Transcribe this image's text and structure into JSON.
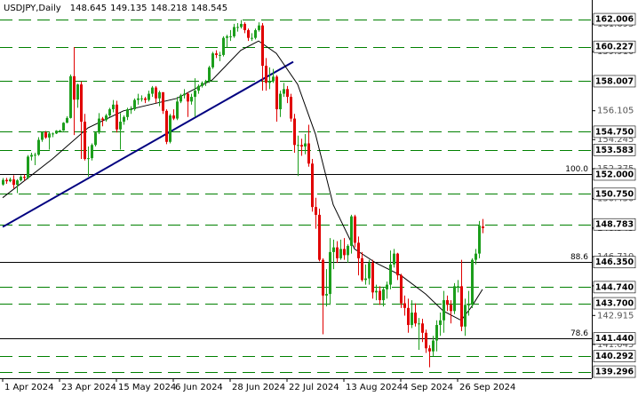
{
  "chart_data": {
    "type": "candlestick",
    "title": "USDJPY,Daily",
    "quote": [
      148.645,
      149.135,
      148.218,
      148.545
    ],
    "up_color": "#1c9e1c",
    "down_color": "#e00000",
    "level_color": "#008000",
    "trend_color": "#000080",
    "ma_color": "#000000",
    "xlim": [
      -0.75,
      165.75
    ],
    "ylim": [
      138.87,
      163.24
    ],
    "xticks": [
      {
        "value": 0,
        "label": "1 Apr 2024"
      },
      {
        "value": 16,
        "label": "23 Apr 2024"
      },
      {
        "value": 32,
        "label": "15 May 2024"
      },
      {
        "value": 48,
        "label": "6 Jun 2024"
      },
      {
        "value": 64,
        "label": "28 Jun 2024"
      },
      {
        "value": 80,
        "label": "22 Jul 2024"
      },
      {
        "value": 96,
        "label": "13 Aug 2024"
      },
      {
        "value": 112,
        "label": "4 Sep 2024"
      },
      {
        "value": 128,
        "label": "26 Sep 2024"
      }
    ],
    "yticks": [
      161.695,
      {
        "value": 159.91,
        "label": "159.910"
      },
      156.105,
      154.245,
      152.375,
      {
        "value": 150.45,
        "label": "150.450"
      },
      148.545,
      {
        "value": 146.71,
        "label": "146.710"
      },
      144.825,
      142.915,
      141.045
    ],
    "levels": [
      {
        "value": 162.006,
        "style": "dashed"
      },
      {
        "value": 160.227,
        "style": "dashed"
      },
      {
        "value": 158.007,
        "style": "dashed"
      },
      {
        "value": 154.75,
        "label": "154.750",
        "style": "dashed"
      },
      {
        "value": 153.583,
        "style": "dashed"
      },
      {
        "value": 152,
        "label": "152.000",
        "style": "solid",
        "fib": "100.0"
      },
      {
        "value": 150.75,
        "label": "150.750",
        "style": "dashed"
      },
      {
        "value": 148.783,
        "style": "dashed"
      },
      {
        "value": 146.35,
        "label": "146.350",
        "style": "solid",
        "fib": 88.6
      },
      {
        "value": 144.74,
        "label": "144.740",
        "style": "dashed"
      },
      {
        "value": 143.7,
        "label": "143.700",
        "style": "dashed"
      },
      {
        "value": 141.44,
        "label": "141.440",
        "style": "solid",
        "fib": 78.6
      },
      {
        "value": 140.292,
        "style": "dashed"
      },
      {
        "value": 139.296,
        "style": "dashed"
      }
    ],
    "trend": {
      "x": [
        0,
        81.75
      ],
      "values": [
        148.62,
        159.26
      ]
    },
    "ma": {
      "x": [
        0,
        14,
        24,
        34,
        49,
        59,
        67,
        72,
        77,
        83,
        88,
        93,
        99,
        105,
        112,
        119,
        124,
        129,
        132,
        135
      ],
      "values": [
        150.5,
        153.0,
        155.0,
        156.1,
        156.9,
        158.1,
        160.0,
        160.6,
        159.8,
        157.8,
        154.6,
        150.05,
        147.2,
        146.3,
        145.5,
        144.3,
        143.2,
        142.6,
        143.5,
        144.6
      ]
    },
    "ohlc": [
      [
        151.35,
        151.77,
        151.28,
        151.65
      ],
      [
        151.65,
        151.78,
        151.4,
        151.56
      ],
      [
        151.56,
        151.8,
        151.5,
        151.68
      ],
      [
        151.68,
        151.95,
        151.1,
        151.33
      ],
      [
        151.33,
        151.7,
        150.8,
        151.62
      ],
      [
        151.62,
        151.95,
        151.55,
        151.85
      ],
      [
        151.85,
        152.0,
        151.6,
        151.78
      ],
      [
        151.78,
        153.25,
        151.7,
        153.15
      ],
      [
        153.15,
        153.4,
        152.9,
        153.26
      ],
      [
        153.26,
        153.4,
        152.6,
        153.27
      ],
      [
        153.27,
        154.4,
        153.2,
        154.23
      ],
      [
        154.23,
        154.78,
        154.1,
        154.71
      ],
      [
        154.71,
        154.8,
        154.3,
        154.38
      ],
      [
        154.38,
        154.75,
        153.6,
        154.64
      ],
      [
        154.64,
        154.7,
        154.4,
        154.64
      ],
      [
        154.64,
        154.85,
        154.6,
        154.82
      ],
      [
        154.82,
        154.87,
        154.7,
        154.83
      ],
      [
        154.83,
        155.37,
        154.8,
        155.33
      ],
      [
        155.33,
        155.75,
        155.3,
        155.64
      ],
      [
        155.64,
        158.44,
        155.6,
        158.33
      ],
      [
        158.33,
        160.21,
        154.54,
        156.82
      ],
      [
        156.82,
        157.85,
        156.3,
        157.8
      ],
      [
        157.8,
        157.99,
        153.0,
        155.4
      ],
      [
        155.4,
        155.9,
        152.9,
        153.0
      ],
      [
        153.0,
        153.8,
        151.86,
        153.05
      ],
      [
        153.05,
        154.0,
        152.9,
        153.9
      ],
      [
        153.9,
        154.75,
        153.8,
        154.7
      ],
      [
        154.7,
        155.95,
        154.6,
        155.6
      ],
      [
        155.6,
        155.7,
        155.1,
        155.5
      ],
      [
        155.5,
        155.9,
        155.4,
        155.8
      ],
      [
        155.8,
        156.3,
        155.7,
        156.2
      ],
      [
        156.2,
        156.8,
        156.0,
        156.5
      ],
      [
        156.5,
        156.75,
        154.7,
        154.9
      ],
      [
        154.9,
        155.95,
        153.6,
        155.4
      ],
      [
        155.4,
        155.8,
        155.2,
        155.7
      ],
      [
        155.7,
        156.3,
        155.5,
        156.2
      ],
      [
        156.2,
        156.4,
        155.9,
        156.2
      ],
      [
        156.2,
        156.9,
        156.1,
        156.8
      ],
      [
        156.8,
        157.2,
        156.5,
        156.9
      ],
      [
        156.9,
        157.1,
        156.7,
        156.9
      ],
      [
        156.9,
        157.0,
        156.6,
        156.8
      ],
      [
        156.8,
        157.4,
        156.7,
        157.2
      ],
      [
        157.2,
        157.7,
        157.0,
        157.6
      ],
      [
        157.6,
        157.7,
        156.6,
        156.9
      ],
      [
        156.9,
        157.4,
        156.4,
        157.3
      ],
      [
        157.3,
        157.3,
        155.9,
        156.1
      ],
      [
        156.1,
        156.2,
        153.95,
        154.1
      ],
      [
        154.1,
        155.9,
        154.0,
        155.8
      ],
      [
        155.8,
        156.2,
        155.5,
        155.6
      ],
      [
        155.6,
        157.0,
        155.5,
        156.7
      ],
      [
        156.7,
        157.2,
        156.6,
        157.1
      ],
      [
        157.1,
        157.5,
        156.9,
        157.2
      ],
      [
        157.2,
        157.3,
        155.7,
        156.7
      ],
      [
        156.7,
        157.2,
        156.5,
        157.0
      ],
      [
        157.0,
        158.2,
        155.7,
        157.4
      ],
      [
        157.4,
        157.8,
        157.2,
        157.7
      ],
      [
        157.7,
        158.0,
        157.6,
        157.9
      ],
      [
        157.9,
        158.1,
        157.7,
        158.0
      ],
      [
        158.0,
        159.0,
        157.9,
        158.9
      ],
      [
        158.9,
        159.9,
        158.8,
        159.8
      ],
      [
        159.8,
        160.0,
        159.5,
        159.7
      ],
      [
        159.7,
        159.9,
        159.3,
        159.7
      ],
      [
        159.7,
        160.9,
        159.6,
        160.8
      ],
      [
        160.8,
        161.0,
        160.2,
        160.9
      ],
      [
        160.9,
        161.3,
        160.6,
        160.9
      ],
      [
        160.9,
        161.7,
        160.8,
        161.5
      ],
      [
        161.5,
        161.75,
        161.2,
        161.5
      ],
      [
        161.5,
        161.95,
        161.4,
        161.7
      ],
      [
        161.7,
        161.8,
        161.1,
        161.3
      ],
      [
        161.3,
        161.4,
        160.6,
        160.8
      ],
      [
        160.8,
        161.1,
        160.6,
        160.8
      ],
      [
        160.8,
        161.4,
        160.7,
        161.3
      ],
      [
        161.3,
        161.8,
        161.2,
        161.6
      ],
      [
        161.6,
        161.75,
        157.4,
        159.0
      ],
      [
        159.0,
        159.5,
        157.4,
        157.9
      ],
      [
        157.9,
        158.9,
        157.5,
        158.0
      ],
      [
        158.0,
        158.8,
        157.9,
        158.3
      ],
      [
        158.3,
        158.4,
        155.4,
        156.2
      ],
      [
        156.2,
        157.4,
        155.7,
        157.2
      ],
      [
        157.2,
        157.9,
        157.0,
        157.5
      ],
      [
        157.5,
        157.7,
        156.6,
        157.0
      ],
      [
        157.0,
        157.2,
        155.4,
        155.6
      ],
      [
        155.6,
        155.9,
        153.4,
        153.9
      ],
      [
        153.9,
        154.5,
        151.9,
        153.9
      ],
      [
        153.9,
        154.3,
        153.2,
        153.8
      ],
      [
        153.8,
        154.6,
        153.3,
        154.0
      ],
      [
        154.0,
        155.2,
        152.5,
        152.7
      ],
      [
        152.7,
        153.0,
        149.6,
        149.9
      ],
      [
        149.9,
        150.5,
        148.5,
        149.4
      ],
      [
        149.4,
        149.8,
        146.4,
        146.5
      ],
      [
        146.5,
        146.6,
        141.7,
        144.2
      ],
      [
        144.2,
        145.9,
        143.5,
        144.3
      ],
      [
        144.3,
        147.9,
        143.6,
        147.0
      ],
      [
        147.0,
        147.8,
        145.9,
        147.3
      ],
      [
        147.3,
        147.7,
        146.3,
        146.6
      ],
      [
        146.6,
        147.8,
        146.5,
        147.2
      ],
      [
        147.2,
        147.9,
        146.5,
        146.8
      ],
      [
        146.8,
        147.5,
        146.3,
        147.4
      ],
      [
        147.4,
        149.4,
        146.9,
        149.3
      ],
      [
        149.3,
        149.4,
        147.3,
        147.6
      ],
      [
        147.6,
        148.0,
        145.5,
        146.6
      ],
      [
        146.6,
        147.0,
        145.1,
        145.2
      ],
      [
        145.2,
        146.2,
        144.9,
        145.3
      ],
      [
        145.3,
        146.5,
        144.9,
        146.3
      ],
      [
        146.3,
        146.5,
        144.0,
        144.4
      ],
      [
        144.4,
        144.9,
        143.9,
        144.5
      ],
      [
        144.5,
        144.8,
        143.6,
        143.9
      ],
      [
        143.9,
        144.7,
        143.5,
        144.6
      ],
      [
        144.6,
        145.1,
        144.0,
        144.9
      ],
      [
        144.9,
        147.1,
        144.6,
        146.2
      ],
      [
        146.2,
        147.2,
        146.0,
        146.9
      ],
      [
        146.9,
        146.95,
        145.2,
        145.5
      ],
      [
        145.5,
        145.6,
        143.4,
        143.7
      ],
      [
        143.7,
        144.2,
        142.9,
        143.4
      ],
      [
        143.4,
        144.0,
        141.8,
        142.3
      ],
      [
        142.3,
        143.9,
        142.1,
        143.1
      ],
      [
        143.1,
        143.7,
        142.2,
        142.4
      ],
      [
        142.4,
        142.75,
        140.7,
        142.4
      ],
      [
        142.4,
        142.7,
        141.2,
        141.8
      ],
      [
        141.8,
        142.0,
        140.5,
        140.8
      ],
      [
        140.8,
        141.0,
        139.58,
        140.6
      ],
      [
        140.6,
        141.6,
        140.3,
        141.3
      ],
      [
        141.3,
        142.6,
        140.6,
        142.3
      ],
      [
        142.3,
        143.1,
        141.6,
        142.6
      ],
      [
        142.6,
        144.5,
        141.8,
        143.9
      ],
      [
        143.9,
        144.2,
        143.2,
        143.6
      ],
      [
        143.6,
        143.9,
        142.4,
        143.2
      ],
      [
        143.2,
        145.0,
        143.0,
        144.8
      ],
      [
        144.8,
        145.2,
        144.4,
        144.8
      ],
      [
        144.8,
        146.5,
        141.9,
        142.2
      ],
      [
        142.2,
        144.0,
        141.6,
        143.6
      ],
      [
        143.6,
        144.5,
        142.9,
        143.6
      ],
      [
        143.6,
        146.6,
        143.4,
        146.5
      ],
      [
        146.5,
        147.2,
        146.2,
        146.9
      ],
      [
        146.9,
        149.0,
        146.6,
        148.7
      ],
      [
        148.645,
        149.135,
        148.218,
        148.545
      ]
    ]
  }
}
